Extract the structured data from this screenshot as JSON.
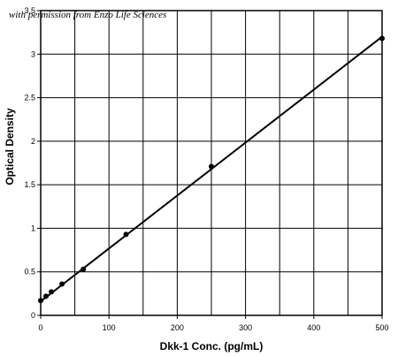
{
  "watermark": "with permission from Enzo Life Sciences",
  "chart_data": {
    "type": "scatter",
    "xlabel": "Dkk-1 Conc. (pg/mL)",
    "ylabel": "Optical Density",
    "xlim": [
      0,
      500
    ],
    "ylim": [
      0,
      3.5
    ],
    "xticks": [
      0,
      100,
      200,
      300,
      400,
      500
    ],
    "xtick_labels": [
      "0",
      "100",
      "200",
      "300",
      "400",
      "500"
    ],
    "yticks": [
      0,
      0.5,
      1,
      1.5,
      2,
      2.5,
      3,
      3.5
    ],
    "ytick_labels": [
      "0",
      "0.5",
      "1",
      "1.5",
      "2",
      "2.5",
      "3",
      "3.5"
    ],
    "grid": true,
    "x_gridlines": [
      0,
      50,
      100,
      150,
      200,
      250,
      300,
      350,
      400,
      450,
      500
    ],
    "series": [
      {
        "x": [
          0,
          7.8,
          15.6,
          31.25,
          62.5,
          125,
          250,
          500
        ],
        "y": [
          0.17,
          0.22,
          0.27,
          0.36,
          0.53,
          0.93,
          1.71,
          3.18
        ]
      }
    ],
    "fit_line": {
      "x": [
        0,
        500
      ],
      "y": [
        0.16,
        3.2
      ]
    },
    "colors": {
      "points": "#000000",
      "line": "#000000",
      "grid": "#000000"
    }
  }
}
